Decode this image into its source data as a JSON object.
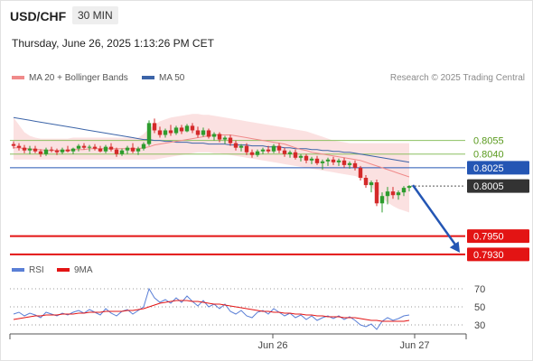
{
  "header": {
    "symbol": "USD/CHF",
    "timeframe": "30 MIN",
    "datetime": "Thursday, June 26, 2025 1:13:26 PM CET",
    "credit": "Research © 2025 Trading Central"
  },
  "colors": {
    "bullish": "#2e9c2e",
    "bearish": "#d42a2a",
    "ma20": "#f08a8a",
    "ma50": "#3c64a8",
    "bollinger_fill": "#fbdede",
    "support": "#e31414",
    "pivot": "#2456b4",
    "resistance": "#8cc060",
    "arrow": "#2456b4",
    "rsi": "#5a7fd6",
    "rsi_ma": "#e31414"
  },
  "chart_data": [
    {
      "type": "candlestick",
      "legend": [
        {
          "name": "MA 20 + Bollinger Bands",
          "color": "#f08a8a"
        },
        {
          "name": "MA 50",
          "color": "#3c64a8"
        }
      ],
      "ylim": [
        0.792,
        0.811
      ],
      "x_ticks": [
        "Jun 26",
        "Jun 27"
      ],
      "levels": [
        {
          "value": 0.8055,
          "label": "0.8055",
          "kind": "resistance"
        },
        {
          "value": 0.804,
          "label": "0.8040",
          "kind": "resistance"
        },
        {
          "value": 0.8025,
          "label": "0.8025",
          "kind": "pivot"
        },
        {
          "value": 0.8005,
          "label": "0.8005",
          "kind": "current"
        },
        {
          "value": 0.795,
          "label": "0.7950",
          "kind": "support"
        },
        {
          "value": 0.793,
          "label": "0.7930",
          "kind": "support"
        }
      ],
      "forecast_arrow": {
        "from": 0.8005,
        "to": 0.793
      },
      "candles": [
        [
          0.8051,
          0.8054,
          0.8046,
          0.8049
        ],
        [
          0.8049,
          0.8052,
          0.8044,
          0.8047
        ],
        [
          0.8047,
          0.805,
          0.8041,
          0.8044
        ],
        [
          0.8044,
          0.8049,
          0.804,
          0.8046
        ],
        [
          0.8046,
          0.8049,
          0.8041,
          0.8043
        ],
        [
          0.8043,
          0.8045,
          0.8037,
          0.804
        ],
        [
          0.804,
          0.8047,
          0.8038,
          0.8045
        ],
        [
          0.8045,
          0.8048,
          0.8042,
          0.8044
        ],
        [
          0.8044,
          0.8046,
          0.8039,
          0.8042
        ],
        [
          0.8042,
          0.8047,
          0.804,
          0.8045
        ],
        [
          0.8045,
          0.8049,
          0.8042,
          0.8043
        ],
        [
          0.8043,
          0.8047,
          0.804,
          0.8046
        ],
        [
          0.8046,
          0.8051,
          0.8043,
          0.8049
        ],
        [
          0.8049,
          0.8052,
          0.8045,
          0.8047
        ],
        [
          0.8047,
          0.805,
          0.8043,
          0.8048
        ],
        [
          0.8048,
          0.8051,
          0.8044,
          0.8046
        ],
        [
          0.8046,
          0.8049,
          0.8042,
          0.8043
        ],
        [
          0.8043,
          0.805,
          0.8041,
          0.8048
        ],
        [
          0.8048,
          0.8052,
          0.8043,
          0.8045
        ],
        [
          0.8045,
          0.8047,
          0.8037,
          0.804
        ],
        [
          0.804,
          0.8046,
          0.8038,
          0.8044
        ],
        [
          0.8044,
          0.8049,
          0.804,
          0.8047
        ],
        [
          0.8047,
          0.8052,
          0.8041,
          0.8043
        ],
        [
          0.8043,
          0.8048,
          0.8039,
          0.8046
        ],
        [
          0.8046,
          0.8053,
          0.8044,
          0.8051
        ],
        [
          0.8051,
          0.8077,
          0.8049,
          0.8074
        ],
        [
          0.8074,
          0.8079,
          0.8063,
          0.8066
        ],
        [
          0.8066,
          0.807,
          0.8058,
          0.8061
        ],
        [
          0.8061,
          0.8068,
          0.8058,
          0.8066
        ],
        [
          0.8066,
          0.8072,
          0.806,
          0.8063
        ],
        [
          0.8063,
          0.8071,
          0.8061,
          0.8069
        ],
        [
          0.8069,
          0.8072,
          0.8062,
          0.8065
        ],
        [
          0.8065,
          0.8073,
          0.8064,
          0.8071
        ],
        [
          0.8071,
          0.8074,
          0.8063,
          0.8066
        ],
        [
          0.8066,
          0.807,
          0.8058,
          0.8061
        ],
        [
          0.8061,
          0.8069,
          0.8059,
          0.8066
        ],
        [
          0.8066,
          0.8068,
          0.8057,
          0.8059
        ],
        [
          0.8059,
          0.8064,
          0.8055,
          0.8062
        ],
        [
          0.8062,
          0.8064,
          0.8053,
          0.8056
        ],
        [
          0.8056,
          0.806,
          0.8051,
          0.8058
        ],
        [
          0.8058,
          0.8061,
          0.8049,
          0.8052
        ],
        [
          0.8052,
          0.8055,
          0.8044,
          0.8047
        ],
        [
          0.8047,
          0.8051,
          0.8043,
          0.8049
        ],
        [
          0.8049,
          0.8052,
          0.8039,
          0.8042
        ],
        [
          0.8042,
          0.8045,
          0.8036,
          0.8039
        ],
        [
          0.8039,
          0.8045,
          0.8037,
          0.8043
        ],
        [
          0.8043,
          0.8047,
          0.804,
          0.8045
        ],
        [
          0.8045,
          0.8049,
          0.8041,
          0.8043
        ],
        [
          0.8043,
          0.8051,
          0.8041,
          0.8049
        ],
        [
          0.8049,
          0.8052,
          0.8041,
          0.8044
        ],
        [
          0.8044,
          0.8047,
          0.8037,
          0.804
        ],
        [
          0.804,
          0.8044,
          0.8036,
          0.8042
        ],
        [
          0.8042,
          0.8045,
          0.8034,
          0.8036
        ],
        [
          0.8036,
          0.804,
          0.8032,
          0.8038
        ],
        [
          0.8038,
          0.804,
          0.803,
          0.8033
        ],
        [
          0.8033,
          0.8037,
          0.8029,
          0.8035
        ],
        [
          0.8035,
          0.8038,
          0.8028,
          0.803
        ],
        [
          0.803,
          0.8034,
          0.8023,
          0.8032
        ],
        [
          0.8032,
          0.8036,
          0.8027,
          0.8034
        ],
        [
          0.8034,
          0.8037,
          0.8028,
          0.8031
        ],
        [
          0.8031,
          0.8035,
          0.8027,
          0.8033
        ],
        [
          0.8033,
          0.8036,
          0.8025,
          0.8028
        ],
        [
          0.8028,
          0.8032,
          0.8024,
          0.803
        ],
        [
          0.803,
          0.8033,
          0.8022,
          0.8025
        ],
        [
          0.8025,
          0.8027,
          0.8011,
          0.8014
        ],
        [
          0.8014,
          0.8017,
          0.8003,
          0.8006
        ],
        [
          0.8006,
          0.8011,
          0.7998,
          0.8009
        ],
        [
          0.8009,
          0.8012,
          0.7983,
          0.7986
        ],
        [
          0.7986,
          0.7998,
          0.7976,
          0.7994
        ],
        [
          0.7994,
          0.8004,
          0.7985,
          0.7999
        ],
        [
          0.7999,
          0.8004,
          0.7991,
          0.7995
        ],
        [
          0.7995,
          0.8,
          0.799,
          0.7998
        ],
        [
          0.7998,
          0.8005,
          0.7994,
          0.8003
        ],
        [
          0.8003,
          0.8006,
          0.7999,
          0.8005
        ]
      ],
      "ma20": [
        0.8047,
        0.8047,
        0.8046,
        0.8046,
        0.8045,
        0.8045,
        0.8044,
        0.8044,
        0.8044,
        0.8044,
        0.8044,
        0.8045,
        0.8045,
        0.8045,
        0.8046,
        0.8046,
        0.8046,
        0.8046,
        0.8046,
        0.8046,
        0.8046,
        0.8046,
        0.8046,
        0.8046,
        0.8047,
        0.8048,
        0.805,
        0.8051,
        0.8052,
        0.8053,
        0.8054,
        0.8055,
        0.8056,
        0.8057,
        0.8058,
        0.8059,
        0.806,
        0.8061,
        0.8061,
        0.8061,
        0.8061,
        0.806,
        0.8059,
        0.8058,
        0.8057,
        0.8056,
        0.8055,
        0.8054,
        0.8053,
        0.8052,
        0.8051,
        0.8049,
        0.8047,
        0.8045,
        0.8044,
        0.8042,
        0.8041,
        0.804,
        0.8039,
        0.8038,
        0.8037,
        0.8036,
        0.8035,
        0.8034,
        0.8033,
        0.8031,
        0.8029,
        0.8027,
        0.8025,
        0.8023,
        0.8021,
        0.8019,
        0.8017,
        0.8015
      ],
      "ma50": [
        0.808,
        0.8079,
        0.8078,
        0.8077,
        0.8076,
        0.8075,
        0.8074,
        0.8073,
        0.8072,
        0.8071,
        0.807,
        0.8069,
        0.8068,
        0.8067,
        0.8066,
        0.8065,
        0.8064,
        0.8063,
        0.8062,
        0.8061,
        0.806,
        0.8059,
        0.8058,
        0.8057,
        0.8056,
        0.8056,
        0.8055,
        0.8055,
        0.8054,
        0.8054,
        0.8053,
        0.8053,
        0.8053,
        0.8052,
        0.8052,
        0.8052,
        0.8051,
        0.8051,
        0.8051,
        0.8051,
        0.805,
        0.805,
        0.805,
        0.805,
        0.8049,
        0.8049,
        0.8049,
        0.8048,
        0.8048,
        0.8048,
        0.8047,
        0.8047,
        0.8046,
        0.8046,
        0.8046,
        0.8045,
        0.8045,
        0.8044,
        0.8044,
        0.8043,
        0.8043,
        0.8042,
        0.8042,
        0.8041,
        0.804,
        0.8039,
        0.8038,
        0.8037,
        0.8036,
        0.8035,
        0.8034,
        0.8033,
        0.8032,
        0.8031
      ],
      "bb_upper": [
        0.808,
        0.8072,
        0.8064,
        0.806,
        0.8058,
        0.8057,
        0.8057,
        0.8057,
        0.8057,
        0.8057,
        0.8057,
        0.8058,
        0.8058,
        0.8058,
        0.8058,
        0.8058,
        0.8058,
        0.8058,
        0.8058,
        0.8058,
        0.8058,
        0.8058,
        0.8058,
        0.8058,
        0.8062,
        0.8068,
        0.8072,
        0.8076,
        0.8078,
        0.808,
        0.8081,
        0.8082,
        0.8083,
        0.8084,
        0.8084,
        0.8083,
        0.8083,
        0.8082,
        0.8081,
        0.808,
        0.8079,
        0.8078,
        0.8077,
        0.8076,
        0.8075,
        0.8074,
        0.8073,
        0.8072,
        0.8071,
        0.807,
        0.8069,
        0.8068,
        0.8067,
        0.8066,
        0.8065,
        0.8063,
        0.8061,
        0.8059,
        0.8057,
        0.8055,
        0.8054,
        0.8053,
        0.8052,
        0.8052,
        0.8052,
        0.8052,
        0.8052,
        0.8052,
        0.8052,
        0.8052,
        0.8052,
        0.8052,
        0.8052,
        0.8052
      ],
      "bb_lower": [
        0.8034,
        0.8034,
        0.8034,
        0.8034,
        0.8034,
        0.8034,
        0.8034,
        0.8034,
        0.8034,
        0.8034,
        0.8034,
        0.8034,
        0.8034,
        0.8034,
        0.8034,
        0.8034,
        0.8034,
        0.8034,
        0.8034,
        0.8034,
        0.8034,
        0.8034,
        0.8034,
        0.8034,
        0.8034,
        0.8034,
        0.8034,
        0.8035,
        0.8036,
        0.8037,
        0.8038,
        0.8039,
        0.804,
        0.8041,
        0.8042,
        0.8042,
        0.8042,
        0.8041,
        0.8041,
        0.804,
        0.8039,
        0.8038,
        0.8037,
        0.8036,
        0.8035,
        0.8034,
        0.8033,
        0.8032,
        0.8031,
        0.803,
        0.8029,
        0.8028,
        0.8027,
        0.8026,
        0.8025,
        0.8024,
        0.8023,
        0.8022,
        0.8021,
        0.802,
        0.8019,
        0.8018,
        0.8017,
        0.8016,
        0.8014,
        0.801,
        0.8004,
        0.7998,
        0.7992,
        0.7987,
        0.7983,
        0.798,
        0.7978,
        0.7976
      ]
    },
    {
      "type": "line",
      "legend": [
        {
          "name": "RSI",
          "color": "#5a7fd6"
        },
        {
          "name": "9MA",
          "color": "#e31414"
        }
      ],
      "ylim": [
        22,
        78
      ],
      "y_ticks": [
        70,
        50,
        30
      ],
      "rsi": [
        42,
        44,
        40,
        43,
        41,
        38,
        44,
        42,
        40,
        43,
        41,
        44,
        46,
        43,
        47,
        44,
        41,
        48,
        43,
        40,
        45,
        47,
        42,
        46,
        50,
        70,
        60,
        55,
        58,
        54,
        60,
        55,
        62,
        56,
        51,
        57,
        50,
        53,
        48,
        53,
        45,
        42,
        46,
        40,
        38,
        44,
        46,
        42,
        48,
        44,
        40,
        43,
        38,
        41,
        36,
        40,
        35,
        38,
        40,
        37,
        40,
        36,
        39,
        35,
        30,
        28,
        31,
        25,
        34,
        38,
        35,
        37,
        40,
        41
      ],
      "rsi_ma": [
        36,
        37,
        38,
        39,
        40,
        40,
        41,
        41,
        41,
        42,
        42,
        42,
        43,
        43,
        44,
        44,
        44,
        45,
        45,
        45,
        45,
        46,
        46,
        47,
        48,
        50,
        52,
        54,
        55,
        56,
        57,
        57,
        57,
        56,
        56,
        55,
        54,
        53,
        53,
        52,
        51,
        50,
        49,
        48,
        47,
        46,
        45,
        45,
        44,
        44,
        43,
        43,
        42,
        42,
        41,
        41,
        40,
        40,
        39,
        39,
        39,
        38,
        38,
        38,
        37,
        36,
        35,
        35,
        34,
        34,
        34,
        34,
        34,
        35
      ]
    }
  ]
}
